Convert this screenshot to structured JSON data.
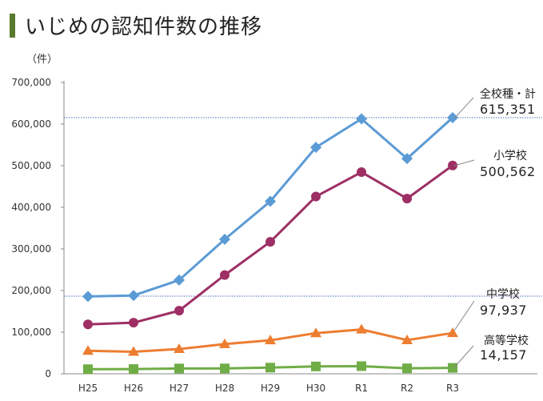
{
  "page": {
    "title": "いじめの認知件数の推移",
    "title_bar_color": "#5a7a2e"
  },
  "chart_data": {
    "type": "line",
    "title": "いじめの認知件数の推移",
    "ylabel": "（件）",
    "xlabel": "",
    "categories": [
      "H25",
      "H26",
      "H27",
      "H28",
      "H29",
      "H30",
      "R1",
      "R2",
      "R3"
    ],
    "ylim": [
      0,
      700000
    ],
    "yticks": [
      0,
      100000,
      200000,
      300000,
      400000,
      500000,
      600000,
      700000
    ],
    "ytick_labels": [
      "0",
      "100,000",
      "200,000",
      "300,000",
      "400,000",
      "500,000",
      "600,000",
      "700,000"
    ],
    "grid": false,
    "series": [
      {
        "name": "全校種・計",
        "end_label": "615,351",
        "color": "#5b9bd5",
        "marker": "diamond",
        "values": [
          185803,
          188072,
          225132,
          323143,
          414378,
          543933,
          612496,
          517163,
          615351
        ],
        "reference_line": true
      },
      {
        "name": "小学校",
        "end_label": "500,562",
        "color": "#9e2f64",
        "marker": "circle",
        "values": [
          118748,
          122734,
          151692,
          237256,
          317121,
          425844,
          484545,
          420897,
          500562
        ],
        "reference_line": false
      },
      {
        "name": "中学校",
        "end_label": "97,937",
        "color": "#ed7d31",
        "marker": "triangle",
        "values": [
          55248,
          52971,
          59502,
          71309,
          80424,
          97704,
          106524,
          80877,
          97937
        ],
        "reference_line": true
      },
      {
        "name": "高等学校",
        "end_label": "14,157",
        "color": "#70ad47",
        "marker": "square",
        "values": [
          11039,
          11404,
          12664,
          12874,
          14789,
          17709,
          18352,
          13126,
          14157
        ],
        "reference_line": false
      }
    ]
  }
}
